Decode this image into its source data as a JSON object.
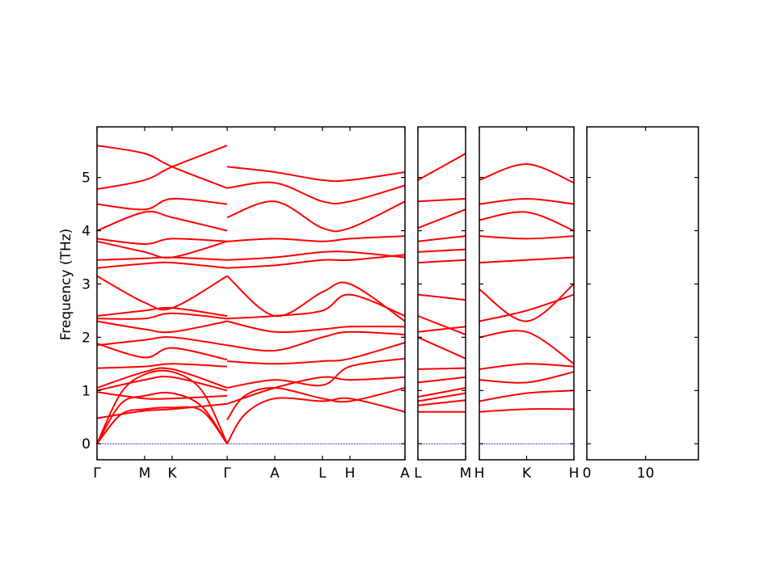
{
  "chart_data": {
    "type": "line",
    "ylabel": "Frequency (THz)",
    "ylim": [
      -0.3,
      5.95
    ],
    "yticks": [
      0,
      1,
      2,
      3,
      4,
      5
    ],
    "zero_line": true,
    "colors": {
      "bands": "#ff0000",
      "zero": "#0000cc",
      "dos_total": "#000000",
      "dos_series": [
        "#1f77b4",
        "#ff7f0e",
        "#2ca02c"
      ]
    },
    "panels": [
      {
        "xticks": [
          {
            "x": 0,
            "label": "Γ"
          },
          {
            "x": 1,
            "label": "M"
          },
          {
            "x": 1.577,
            "label": "K"
          },
          {
            "x": 2.732,
            "label": "Γ"
          },
          {
            "x": 3.732,
            "label": "A"
          },
          {
            "x": 4.732,
            "label": "L"
          },
          {
            "x": 5.309,
            "label": "H"
          },
          {
            "x": 6.464,
            "label": "A"
          }
        ],
        "xrange": [
          0,
          6.464
        ],
        "bands": [
          [
            [
              0,
              0
            ],
            [
              0.5,
              0.55
            ],
            [
              1,
              0.65
            ],
            [
              1.577,
              0.68
            ],
            [
              2.2,
              0.62
            ],
            [
              2.732,
              0
            ]
          ],
          [
            [
              0,
              0
            ],
            [
              0.5,
              0.75
            ],
            [
              1,
              0.9
            ],
            [
              1.577,
              0.95
            ],
            [
              2.2,
              0.7
            ],
            [
              2.732,
              0
            ]
          ],
          [
            [
              0,
              0
            ],
            [
              0.5,
              0.95
            ],
            [
              1,
              1.3
            ],
            [
              1.577,
              1.35
            ],
            [
              2.2,
              1.0
            ],
            [
              2.732,
              0
            ]
          ],
          [
            [
              0,
              0.48
            ],
            [
              1,
              0.62
            ],
            [
              1.577,
              0.65
            ],
            [
              2.732,
              0.75
            ]
          ],
          [
            [
              0,
              0.97
            ],
            [
              1,
              0.85
            ],
            [
              1.577,
              0.85
            ],
            [
              2.732,
              0.9
            ]
          ],
          [
            [
              0,
              1.0
            ],
            [
              1,
              1.2
            ],
            [
              1.577,
              1.25
            ],
            [
              2.732,
              1.0
            ]
          ],
          [
            [
              0,
              1.05
            ],
            [
              1,
              1.35
            ],
            [
              1.577,
              1.4
            ],
            [
              2.732,
              1.05
            ]
          ],
          [
            [
              0,
              1.42
            ],
            [
              1,
              1.45
            ],
            [
              1.577,
              1.5
            ],
            [
              2.732,
              1.45
            ]
          ],
          [
            [
              0,
              1.88
            ],
            [
              1,
              1.62
            ],
            [
              1.577,
              1.8
            ],
            [
              2.732,
              1.58
            ]
          ],
          [
            [
              0,
              1.85
            ],
            [
              1,
              1.95
            ],
            [
              1.577,
              2.0
            ],
            [
              2.732,
              1.85
            ]
          ],
          [
            [
              0,
              2.3
            ],
            [
              1,
              2.15
            ],
            [
              1.577,
              2.1
            ],
            [
              2.732,
              2.3
            ]
          ],
          [
            [
              0,
              2.35
            ],
            [
              1,
              2.35
            ],
            [
              1.577,
              2.45
            ],
            [
              2.732,
              2.35
            ]
          ],
          [
            [
              0,
              2.4
            ],
            [
              1,
              2.5
            ],
            [
              1.577,
              2.55
            ],
            [
              2.732,
              2.4
            ]
          ],
          [
            [
              0,
              3.15
            ],
            [
              1,
              2.65
            ],
            [
              1.577,
              2.55
            ],
            [
              2.732,
              3.15
            ]
          ],
          [
            [
              0,
              3.3
            ],
            [
              1,
              3.38
            ],
            [
              1.577,
              3.4
            ],
            [
              2.732,
              3.3
            ]
          ],
          [
            [
              0,
              3.45
            ],
            [
              1,
              3.48
            ],
            [
              1.577,
              3.5
            ],
            [
              2.732,
              3.45
            ]
          ],
          [
            [
              0,
              3.8
            ],
            [
              1,
              3.6
            ],
            [
              1.577,
              3.5
            ],
            [
              2.732,
              3.8
            ]
          ],
          [
            [
              0,
              3.85
            ],
            [
              1,
              3.75
            ],
            [
              1.577,
              3.85
            ],
            [
              2.732,
              3.8
            ]
          ],
          [
            [
              0,
              4.0
            ],
            [
              1,
              4.35
            ],
            [
              1.577,
              4.25
            ],
            [
              2.732,
              4.0
            ]
          ],
          [
            [
              0,
              4.5
            ],
            [
              1,
              4.4
            ],
            [
              1.577,
              4.6
            ],
            [
              2.732,
              4.5
            ]
          ],
          [
            [
              0,
              4.78
            ],
            [
              1,
              4.95
            ],
            [
              1.577,
              5.2
            ],
            [
              2.732,
              5.6
            ]
          ],
          [
            [
              0,
              5.6
            ],
            [
              1,
              5.45
            ],
            [
              1.577,
              5.2
            ],
            [
              2.732,
              4.8
            ]
          ],
          [
            [
              2.732,
              0
            ],
            [
              3.1,
              0.55
            ],
            [
              3.732,
              0.85
            ],
            [
              4.732,
              0.8
            ],
            [
              5.309,
              0.85
            ],
            [
              6.464,
              0.6
            ]
          ],
          [
            [
              2.732,
              0.45
            ],
            [
              3.1,
              0.9
            ],
            [
              3.732,
              1.05
            ],
            [
              4.732,
              0.85
            ],
            [
              5.309,
              0.8
            ],
            [
              6.464,
              1.05
            ]
          ],
          [
            [
              2.732,
              0.75
            ],
            [
              3.732,
              1.05
            ],
            [
              4.732,
              1.25
            ],
            [
              5.309,
              1.2
            ],
            [
              6.464,
              1.25
            ]
          ],
          [
            [
              2.732,
              1.05
            ],
            [
              3.732,
              1.2
            ],
            [
              4.732,
              1.1
            ],
            [
              5.309,
              1.45
            ],
            [
              6.464,
              1.6
            ]
          ],
          [
            [
              2.732,
              1.55
            ],
            [
              3.732,
              1.5
            ],
            [
              4.732,
              1.55
            ],
            [
              5.309,
              1.6
            ],
            [
              6.464,
              1.9
            ]
          ],
          [
            [
              2.732,
              1.85
            ],
            [
              3.732,
              1.75
            ],
            [
              4.732,
              2.0
            ],
            [
              5.309,
              2.1
            ],
            [
              6.464,
              2.05
            ]
          ],
          [
            [
              2.732,
              2.3
            ],
            [
              3.732,
              2.1
            ],
            [
              4.732,
              2.15
            ],
            [
              5.309,
              2.2
            ],
            [
              6.464,
              2.2
            ]
          ],
          [
            [
              2.732,
              2.35
            ],
            [
              3.732,
              2.4
            ],
            [
              4.732,
              2.5
            ],
            [
              5.309,
              2.8
            ],
            [
              6.464,
              2.4
            ]
          ],
          [
            [
              2.732,
              3.15
            ],
            [
              3.732,
              2.4
            ],
            [
              4.732,
              2.85
            ],
            [
              5.309,
              3.0
            ],
            [
              6.464,
              2.3
            ]
          ],
          [
            [
              2.732,
              3.3
            ],
            [
              3.732,
              3.35
            ],
            [
              4.732,
              3.45
            ],
            [
              5.309,
              3.45
            ],
            [
              6.464,
              3.55
            ]
          ],
          [
            [
              2.732,
              3.45
            ],
            [
              3.732,
              3.5
            ],
            [
              4.732,
              3.6
            ],
            [
              5.309,
              3.6
            ],
            [
              6.464,
              3.5
            ]
          ],
          [
            [
              2.732,
              3.8
            ],
            [
              3.732,
              3.85
            ],
            [
              4.732,
              3.8
            ],
            [
              5.309,
              3.85
            ],
            [
              6.464,
              3.9
            ]
          ],
          [
            [
              2.732,
              4.25
            ],
            [
              3.732,
              4.55
            ],
            [
              4.732,
              4.05
            ],
            [
              5.309,
              4.05
            ],
            [
              6.464,
              4.55
            ]
          ],
          [
            [
              2.732,
              4.8
            ],
            [
              3.732,
              4.9
            ],
            [
              4.732,
              4.55
            ],
            [
              5.309,
              4.55
            ],
            [
              6.464,
              4.85
            ]
          ],
          [
            [
              2.732,
              5.2
            ],
            [
              3.732,
              5.1
            ],
            [
              4.732,
              4.95
            ],
            [
              5.309,
              4.95
            ],
            [
              6.464,
              5.1
            ]
          ]
        ]
      },
      {
        "xticks": [
          {
            "x": 0,
            "label": "L"
          },
          {
            "x": 1,
            "label": "M"
          }
        ],
        "xrange": [
          0,
          1
        ],
        "bands": [
          [
            [
              0,
              0.6
            ],
            [
              1,
              0.6
            ]
          ],
          [
            [
              0,
              0.72
            ],
            [
              1,
              0.82
            ]
          ],
          [
            [
              0,
              0.8
            ],
            [
              1,
              0.95
            ]
          ],
          [
            [
              0,
              0.88
            ],
            [
              1,
              1.05
            ]
          ],
          [
            [
              0,
              1.15
            ],
            [
              1,
              1.25
            ]
          ],
          [
            [
              0,
              1.4
            ],
            [
              1,
              1.42
            ]
          ],
          [
            [
              0,
              2.0
            ],
            [
              1,
              1.6
            ]
          ],
          [
            [
              0,
              2.1
            ],
            [
              1,
              2.2
            ]
          ],
          [
            [
              0,
              2.4
            ],
            [
              1,
              2.05
            ]
          ],
          [
            [
              0,
              2.8
            ],
            [
              1,
              2.7
            ]
          ],
          [
            [
              0,
              3.4
            ],
            [
              1,
              3.45
            ]
          ],
          [
            [
              0,
              3.6
            ],
            [
              1,
              3.65
            ]
          ],
          [
            [
              0,
              3.8
            ],
            [
              1,
              3.9
            ]
          ],
          [
            [
              0,
              4.05
            ],
            [
              1,
              4.4
            ]
          ],
          [
            [
              0,
              4.55
            ],
            [
              1,
              4.6
            ]
          ],
          [
            [
              0,
              4.95
            ],
            [
              1,
              5.45
            ]
          ]
        ]
      },
      {
        "xticks": [
          {
            "x": 0,
            "label": "H"
          },
          {
            "x": 0.5,
            "label": "K"
          },
          {
            "x": 1,
            "label": "H"
          }
        ],
        "xrange": [
          0,
          1
        ],
        "bands": [
          [
            [
              0,
              0.6
            ],
            [
              0.5,
              0.65
            ],
            [
              1,
              0.65
            ]
          ],
          [
            [
              0,
              0.8
            ],
            [
              0.5,
              0.95
            ],
            [
              1,
              1.0
            ]
          ],
          [
            [
              0,
              1.2
            ],
            [
              0.5,
              1.15
            ],
            [
              1,
              1.35
            ]
          ],
          [
            [
              0,
              1.4
            ],
            [
              0.5,
              1.5
            ],
            [
              1,
              1.45
            ]
          ],
          [
            [
              0,
              2.0
            ],
            [
              0.5,
              2.1
            ],
            [
              1,
              1.5
            ]
          ],
          [
            [
              0,
              2.3
            ],
            [
              0.5,
              2.5
            ],
            [
              1,
              2.8
            ]
          ],
          [
            [
              0,
              2.9
            ],
            [
              0.5,
              2.3
            ],
            [
              1,
              3.0
            ]
          ],
          [
            [
              0,
              3.4
            ],
            [
              0.5,
              3.45
            ],
            [
              1,
              3.5
            ]
          ],
          [
            [
              0,
              3.9
            ],
            [
              0.5,
              3.85
            ],
            [
              1,
              3.9
            ]
          ],
          [
            [
              0,
              4.2
            ],
            [
              0.5,
              4.35
            ],
            [
              1,
              4.0
            ]
          ],
          [
            [
              0,
              4.5
            ],
            [
              0.5,
              4.6
            ],
            [
              1,
              4.5
            ]
          ],
          [
            [
              0,
              4.95
            ],
            [
              0.5,
              5.25
            ],
            [
              1,
              4.9
            ]
          ]
        ]
      },
      {
        "type": "dos",
        "xticks": [
          {
            "x": 0,
            "label": "0"
          },
          {
            "x": 10,
            "label": "10"
          }
        ],
        "xrange": [
          0,
          19
        ]
      }
    ]
  }
}
